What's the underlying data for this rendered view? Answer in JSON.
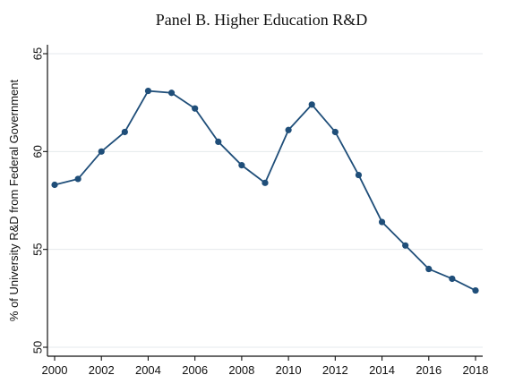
{
  "chart_data": {
    "type": "line",
    "title": "Panel B. Higher Education R&D",
    "xlabel": "",
    "ylabel": "% of University R&D from Federal Government",
    "x": [
      2000,
      2001,
      2002,
      2003,
      2004,
      2005,
      2006,
      2007,
      2008,
      2009,
      2010,
      2011,
      2012,
      2013,
      2014,
      2015,
      2016,
      2017,
      2018
    ],
    "series": [
      {
        "values": [
          58.3,
          58.6,
          60.0,
          61.0,
          63.1,
          63.0,
          62.2,
          60.5,
          59.3,
          58.4,
          61.1,
          62.4,
          61.0,
          58.8,
          56.4,
          55.2,
          54.0,
          53.5,
          52.9
        ],
        "color": "#1f4e79"
      }
    ],
    "xticks": [
      2000,
      2002,
      2004,
      2006,
      2008,
      2010,
      2012,
      2014,
      2016,
      2018
    ],
    "yticks": [
      50,
      55,
      60,
      65
    ],
    "xlim": [
      2000,
      2018
    ],
    "ylim": [
      50,
      65
    ],
    "grid": true,
    "legend": "none"
  }
}
